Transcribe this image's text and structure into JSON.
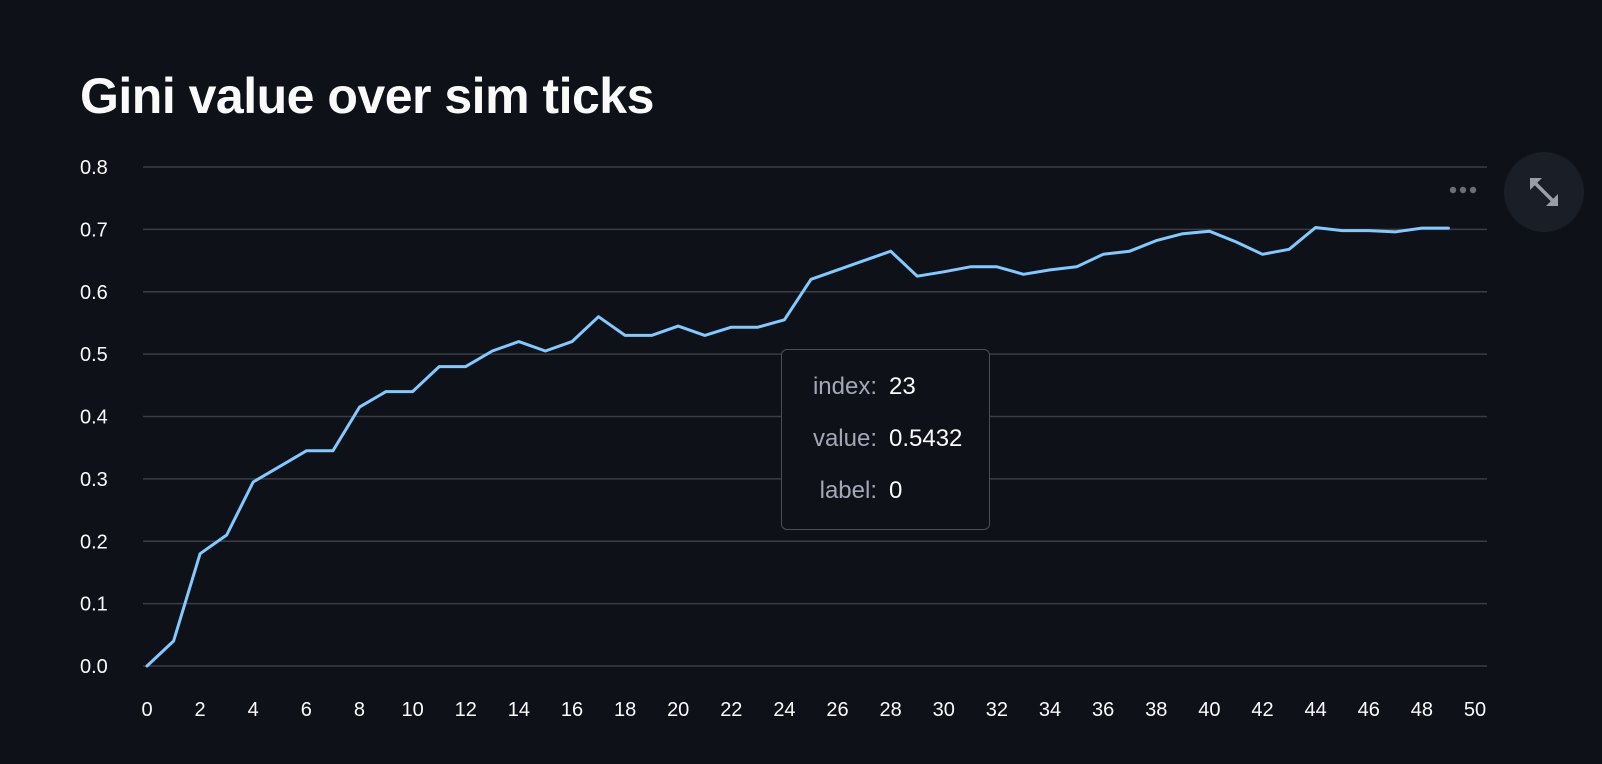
{
  "title": "Gini value over sim ticks",
  "tooltip": {
    "rows": [
      {
        "key": "index:",
        "value": "23"
      },
      {
        "key": "value:",
        "value": "0.5432"
      },
      {
        "key": "label:",
        "value": "0"
      }
    ]
  },
  "toolbar": {
    "more_icon": "more-horizontal-icon",
    "expand_icon": "fullscreen-expand-icon"
  },
  "colors": {
    "background": "#0e1117",
    "line": "#83c9ff",
    "grid": "#3a3d45",
    "text": "#fafafa",
    "tooltip_key": "#a3a8b8"
  },
  "chart_data": {
    "type": "line",
    "title": "Gini value over sim ticks",
    "xlabel": "",
    "ylabel": "",
    "xlim": [
      0,
      50
    ],
    "ylim": [
      0,
      0.8
    ],
    "x_ticks": [
      "0",
      "2",
      "4",
      "6",
      "8",
      "10",
      "12",
      "14",
      "16",
      "18",
      "20",
      "22",
      "24",
      "26",
      "28",
      "30",
      "32",
      "34",
      "36",
      "38",
      "40",
      "42",
      "44",
      "46",
      "48",
      "50"
    ],
    "y_ticks": [
      "0.0",
      "0.1",
      "0.2",
      "0.3",
      "0.4",
      "0.5",
      "0.6",
      "0.7",
      "0.8"
    ],
    "grid": true,
    "legend": "none",
    "series": [
      {
        "x": [
          0,
          1,
          2,
          3,
          4,
          5,
          6,
          7,
          8,
          9,
          10,
          11,
          12,
          13,
          14,
          15,
          16,
          17,
          18,
          19,
          20,
          21,
          22,
          23,
          24,
          25,
          26,
          27,
          28,
          29,
          30,
          31,
          32,
          33,
          34,
          35,
          36,
          37,
          38,
          39,
          40,
          41,
          42,
          43,
          44,
          45,
          46,
          47,
          48,
          49
        ],
        "values": [
          0.0,
          0.04,
          0.18,
          0.21,
          0.295,
          0.32,
          0.345,
          0.345,
          0.415,
          0.44,
          0.44,
          0.48,
          0.48,
          0.505,
          0.52,
          0.505,
          0.52,
          0.56,
          0.53,
          0.53,
          0.545,
          0.53,
          0.5432,
          0.5432,
          0.555,
          0.62,
          0.635,
          0.65,
          0.665,
          0.625,
          0.632,
          0.64,
          0.64,
          0.628,
          0.635,
          0.64,
          0.66,
          0.665,
          0.682,
          0.693,
          0.697,
          0.68,
          0.66,
          0.668,
          0.703,
          0.698,
          0.698,
          0.696,
          0.702,
          0.702
        ]
      }
    ]
  }
}
